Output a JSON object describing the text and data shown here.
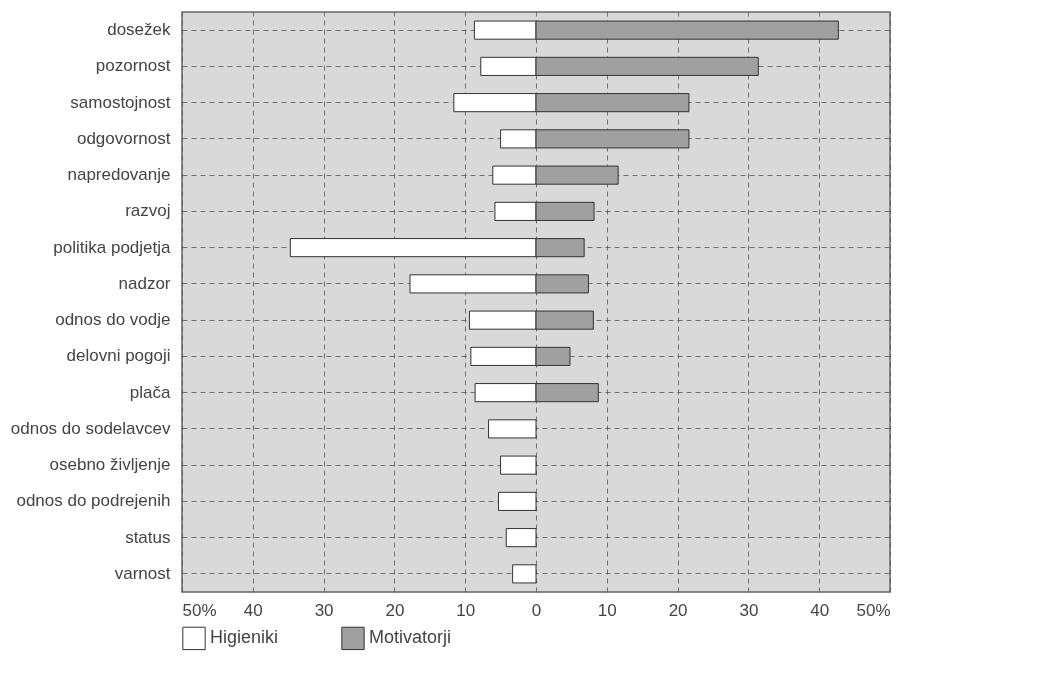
{
  "chart_data": {
    "type": "bar",
    "orientation": "horizontal",
    "stacked": true,
    "categories": [
      "dosežek",
      "pozornost",
      "samostojnost",
      "odgovornost",
      "napredovanje",
      "razvoj",
      "politika podjetja",
      "nadzor",
      "odnos do vodje",
      "delovni pogoji",
      "plača",
      "odnos do sodelavcev",
      "osebno življenje",
      "odnos do podrejenih",
      "status",
      "varnost"
    ],
    "series": [
      {
        "name": "Higieniki",
        "color": "#ffffff",
        "values": [
          -8.7,
          -7.8,
          -11.6,
          -5.0,
          -6.1,
          -5.8,
          -34.7,
          -17.8,
          -9.4,
          -9.2,
          -8.6,
          -6.7,
          -5.0,
          -5.3,
          -4.2,
          -3.3
        ]
      },
      {
        "name": "Motivatorji",
        "color": "#a0a0a0",
        "values": [
          42.7,
          31.4,
          21.6,
          21.6,
          11.6,
          8.2,
          6.8,
          7.4,
          8.1,
          4.8,
          8.8,
          null,
          null,
          null,
          null,
          null
        ]
      }
    ],
    "xlim": [
      -50,
      50
    ],
    "xticks": [
      {
        "value": -50,
        "label": "50%"
      },
      {
        "value": -40,
        "label": "40"
      },
      {
        "value": -30,
        "label": "30"
      },
      {
        "value": -20,
        "label": "20"
      },
      {
        "value": -10,
        "label": "10"
      },
      0,
      10,
      20,
      30,
      40,
      {
        "value": 50,
        "label": "50%"
      }
    ],
    "grid": true,
    "legend": "bottom"
  }
}
